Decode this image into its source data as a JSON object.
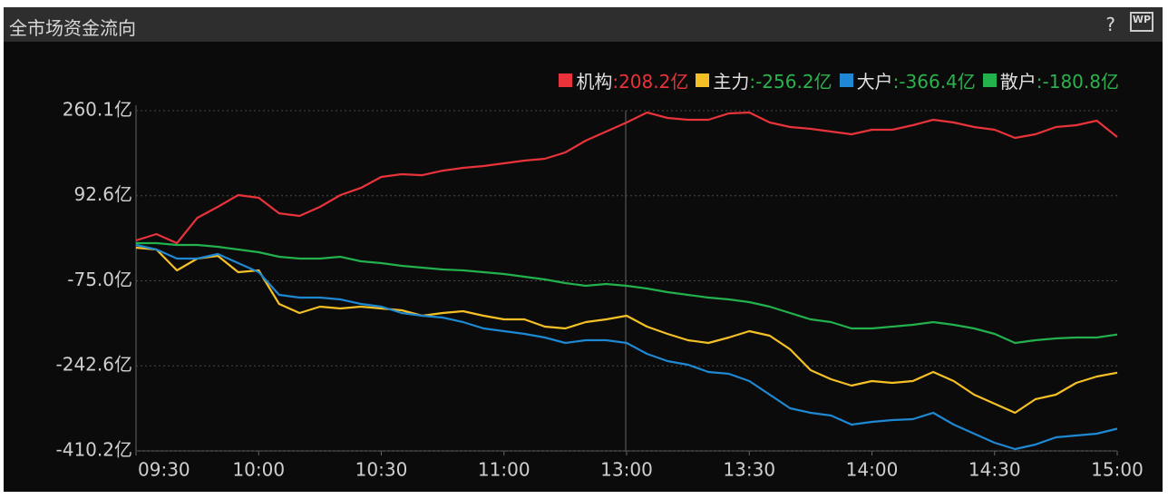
{
  "header": {
    "help": "?",
    "icon": "WP"
  },
  "chart_data": {
    "type": "line",
    "title": "全市场资金流向",
    "x": [
      "09:30",
      "09:35",
      "09:40",
      "09:45",
      "09:50",
      "09:55",
      "10:00",
      "10:05",
      "10:10",
      "10:15",
      "10:20",
      "10:25",
      "10:30",
      "10:35",
      "10:40",
      "10:45",
      "10:50",
      "10:55",
      "11:00",
      "11:05",
      "11:10",
      "11:15",
      "11:20",
      "11:25",
      "13:00",
      "13:05",
      "13:10",
      "13:15",
      "13:20",
      "13:25",
      "13:30",
      "13:35",
      "13:40",
      "13:45",
      "13:50",
      "13:55",
      "14:00",
      "14:05",
      "14:10",
      "14:15",
      "14:20",
      "14:25",
      "14:30",
      "14:35",
      "14:40",
      "14:45",
      "14:50",
      "14:55",
      "15:00"
    ],
    "ylim": [
      -410.2,
      260.1
    ],
    "yticks": [
      {
        "value": 260.1,
        "label": "260.1亿"
      },
      {
        "value": 92.6,
        "label": "92.6亿"
      },
      {
        "value": -75.0,
        "label": "-75.0亿"
      },
      {
        "value": -242.6,
        "label": "-242.6亿"
      },
      {
        "value": -410.2,
        "label": "-410.2亿"
      }
    ],
    "grid": true,
    "up_color": "#e8333a",
    "down_color": "#2bb24c",
    "series": [
      {
        "name": "机构",
        "color": "#e8333a",
        "total": 208.2,
        "total_label": ":208.2亿",
        "values": [
          4.5,
          17,
          -0.9,
          49,
          70.6,
          93.9,
          88.5,
          58,
          52.8,
          70.6,
          93.9,
          108,
          129.6,
          135,
          133,
          142,
          147.5,
          151,
          156.4,
          161.8,
          165.4,
          177.9,
          201.1,
          219,
          236.9,
          256.5,
          245.8,
          242.2,
          242.2,
          254.7,
          256.5,
          236.9,
          227.9,
          224.4,
          219,
          213.6,
          222.6,
          222.6,
          231.5,
          242.2,
          236.9,
          227.9,
          222.6,
          206.5,
          213.6,
          227.9,
          231.5,
          240.4,
          208.2
        ]
      },
      {
        "name": "主力",
        "color": "#f5c026",
        "total": -256.2,
        "total_label": ":-256.2亿",
        "values": [
          -9.8,
          -13.4,
          -54.5,
          -31.3,
          -25.9,
          -58.1,
          -54.5,
          -120.6,
          -138.5,
          -126,
          -129.6,
          -126,
          -129.6,
          -133.2,
          -143.9,
          -138.5,
          -134.9,
          -143.9,
          -151,
          -151,
          -165.3,
          -168.9,
          -156.4,
          -151,
          -143.9,
          -165.3,
          -179.6,
          -192.1,
          -197.5,
          -186.8,
          -174.3,
          -183.2,
          -210,
          -251.1,
          -269,
          -281.5,
          -272.6,
          -276.2,
          -272.6,
          -254.7,
          -272.6,
          -299.4,
          -317.3,
          -335.2,
          -308.4,
          -299.4,
          -276.2,
          -263.6,
          -256.2
        ]
      },
      {
        "name": "大户",
        "color": "#1e88d2",
        "total": -366.4,
        "total_label": ":-366.4亿",
        "values": [
          -4.4,
          -13.4,
          -31.3,
          -31.3,
          -22.3,
          -40.2,
          -58.1,
          -102.8,
          -108.1,
          -108.1,
          -111.7,
          -120.6,
          -126,
          -138.5,
          -143.9,
          -147.5,
          -156.4,
          -168.9,
          -174.3,
          -179.6,
          -186.8,
          -197.5,
          -192.1,
          -192.1,
          -197.5,
          -218.9,
          -233.2,
          -240.4,
          -254.7,
          -258.3,
          -272.6,
          -299.4,
          -326.2,
          -335.2,
          -340.5,
          -358.4,
          -353,
          -349.4,
          -347.6,
          -335.2,
          -358.4,
          -376.2,
          -394.1,
          -406.6,
          -397.7,
          -383.4,
          -379.8,
          -376.2,
          -366.4
        ]
      },
      {
        "name": "散户",
        "color": "#22b14c",
        "total": -180.8,
        "total_label": ":-180.8亿",
        "values": [
          -0.9,
          -0.9,
          -4.4,
          -4.4,
          -8,
          -13.4,
          -18.8,
          -27.7,
          -31.3,
          -31.3,
          -27.7,
          -36.6,
          -40.2,
          -45.6,
          -49.1,
          -52.7,
          -54.5,
          -58.1,
          -61.7,
          -67,
          -72.4,
          -79.5,
          -84.9,
          -81.3,
          -84.9,
          -90.2,
          -97.4,
          -102.8,
          -108.1,
          -111.7,
          -117.1,
          -126,
          -138.5,
          -151,
          -156.4,
          -168.9,
          -168.9,
          -165.3,
          -161.8,
          -156.4,
          -161.8,
          -168.9,
          -179.6,
          -197.5,
          -192.1,
          -188.5,
          -186.8,
          -186.8,
          -180.8
        ]
      }
    ]
  }
}
